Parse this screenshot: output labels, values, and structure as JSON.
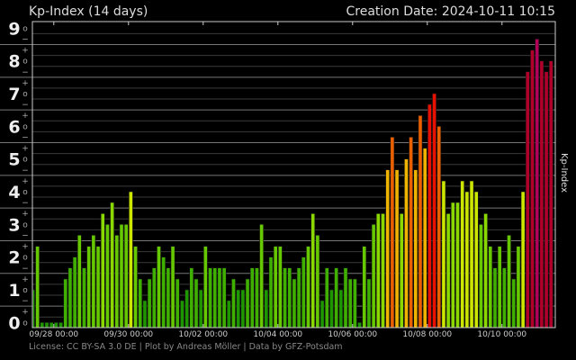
{
  "header": {
    "title": "Kp-Index (14 days)",
    "creation_date": "Creation Date: 2024-10-11 10:15"
  },
  "footer": {
    "credits": "License: CC BY-SA 3.0 DE | Plot by Andreas Möller | Data by GFZ-Potsdam"
  },
  "chart_data": {
    "type": "bar",
    "title": "Kp-Index (14 days)",
    "ylabel": "Kp-Index",
    "xlabel": "",
    "ylim": [
      0,
      9
    ],
    "grid": true,
    "y_major_labels": [
      "0",
      "1",
      "2",
      "3",
      "4",
      "5",
      "6",
      "7",
      "8",
      "9"
    ],
    "y_minor_labels": {
      "plus": "+",
      "zero": "o",
      "minus": "−"
    },
    "x_tick_labels": [
      "09/28 00:00",
      "09/30 00:00",
      "10/02 00:00",
      "10/04 00:00",
      "10/06 00:00",
      "10/08 00:00",
      "10/10 00:00"
    ],
    "x_start": "2024-09-27 09:00",
    "x_interval_hours": 3,
    "values": [
      1.0,
      2.33,
      0,
      0,
      0,
      0,
      0,
      1.33,
      1.67,
      2.0,
      2.67,
      1.67,
      2.33,
      2.67,
      2.33,
      3.33,
      3.0,
      3.67,
      2.67,
      3.0,
      3.0,
      4.0,
      2.33,
      1.33,
      0.67,
      1.33,
      1.67,
      2.33,
      2.0,
      1.67,
      2.33,
      1.33,
      0.67,
      1.0,
      1.67,
      1.33,
      1.0,
      2.33,
      1.67,
      1.67,
      1.67,
      1.67,
      0.67,
      1.33,
      1.0,
      1.0,
      1.33,
      1.67,
      1.67,
      3.0,
      1.0,
      2.0,
      2.33,
      2.33,
      1.67,
      1.67,
      1.33,
      1.67,
      2.0,
      2.33,
      3.33,
      2.67,
      0.67,
      1.67,
      1.0,
      1.67,
      1.0,
      1.67,
      1.33,
      1.33,
      0,
      2.33,
      1.33,
      3.0,
      3.33,
      3.33,
      4.67,
      5.67,
      4.67,
      3.33,
      5.0,
      5.67,
      4.67,
      6.33,
      5.33,
      6.67,
      7.0,
      6.0,
      4.33,
      3.33,
      3.67,
      3.67,
      4.33,
      4.0,
      4.33,
      4.0,
      3.0,
      3.33,
      2.33,
      1.67,
      2.33,
      1.67,
      2.67,
      1.33,
      2.33,
      4.0,
      7.67,
      8.33,
      8.67,
      8.0,
      7.67,
      8.0
    ],
    "color_scale": [
      {
        "max": 1.0,
        "color": "#1e9600"
      },
      {
        "max": 2.0,
        "color": "#3fb000"
      },
      {
        "max": 3.0,
        "color": "#66c800"
      },
      {
        "max": 3.67,
        "color": "#8ad800"
      },
      {
        "max": 4.33,
        "color": "#cde600"
      },
      {
        "max": 5.33,
        "color": "#f0b400"
      },
      {
        "max": 6.33,
        "color": "#ea6000"
      },
      {
        "max": 7.0,
        "color": "#e81000"
      },
      {
        "max": 8.33,
        "color": "#b0002a"
      },
      {
        "max": 9.0,
        "color": "#b00058"
      }
    ],
    "colors": {
      "background": "#000000",
      "grid": "#555555",
      "axis": "#cccccc",
      "text": "#dddddd"
    }
  }
}
